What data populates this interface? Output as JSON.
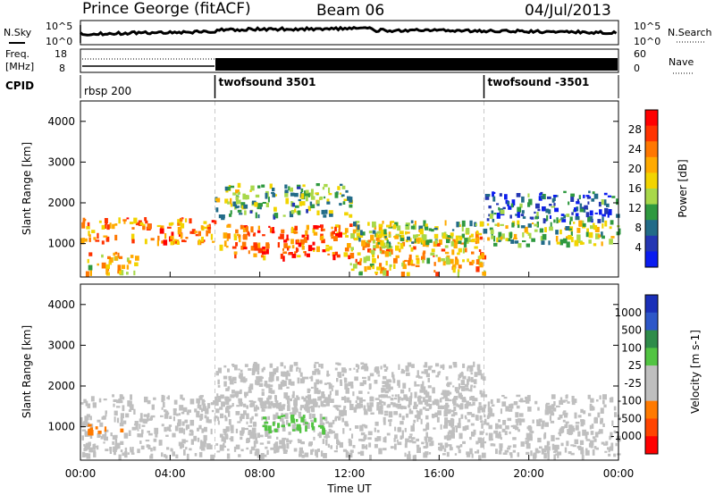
{
  "header": {
    "station": "Prince George (fitACF)",
    "beam": "Beam 06",
    "date": "04/Jul/2013"
  },
  "noise_panel": {
    "left_label": "N.Sky",
    "right_label": "N.Search",
    "left_ticks": [
      "10^5",
      "10^0"
    ],
    "right_ticks": [
      "10^5",
      "10^0"
    ]
  },
  "freq_panel": {
    "left_label_line1": "Freq.",
    "left_label_line2": "[MHz]",
    "right_label": "Nave",
    "left_ticks": [
      "18",
      "8"
    ],
    "right_ticks": [
      "60",
      "0"
    ]
  },
  "cpid_panel": {
    "label": "CPID",
    "segments": [
      {
        "name": "rbsp 200",
        "start_hour": 0,
        "bold": false
      },
      {
        "name": "twofsound 3501",
        "start_hour": 6,
        "bold": true
      },
      {
        "name": "twofsound -3501",
        "start_hour": 18,
        "bold": true
      }
    ]
  },
  "time_axis": {
    "label": "Time UT",
    "ticks": [
      "00:00",
      "04:00",
      "08:00",
      "12:00",
      "16:00",
      "20:00",
      "00:00"
    ]
  },
  "power_panel": {
    "ylabel": "Slant Range [km]",
    "yticks": [
      "4000",
      "3000",
      "2000",
      "1000"
    ],
    "colorbar_label": "Power [dB]",
    "colorbar_ticks": [
      "28",
      "24",
      "20",
      "16",
      "12",
      "8",
      "4"
    ],
    "colors": [
      "#ff0000",
      "#ff3300",
      "#ff7700",
      "#ffaa00",
      "#f2d400",
      "#a8d84a",
      "#2f9940",
      "#226b88",
      "#2436b3",
      "#0a1cf0"
    ]
  },
  "velocity_panel": {
    "ylabel": "Slant Range [km]",
    "yticks": [
      "4000",
      "3000",
      "2000",
      "1000"
    ],
    "colorbar_label": "Velocity [m s-1]",
    "colorbar_ticks": [
      "1000",
      "500",
      "100",
      "25",
      "-25",
      "-100",
      "-500",
      "-1000"
    ],
    "colors": [
      "#1a2fb8",
      "#2d57c8",
      "#2f8c4a",
      "#52c442",
      "#bfbfbf",
      "#bfbfbf",
      "#ff7a00",
      "#ff4400",
      "#ff0000"
    ]
  },
  "chart_data": [
    {
      "type": "heatmap",
      "title": "Power",
      "xlabel": "Time UT",
      "ylabel": "Slant Range [km]",
      "xlim": [
        0,
        24
      ],
      "ylim": [
        180,
        4500
      ],
      "colorbar": {
        "label": "Power [dB]",
        "range": [
          0,
          32
        ]
      },
      "bands": [
        {
          "t0": 0.0,
          "t1": 6.0,
          "r0": 1050,
          "r1": 1650,
          "power": 24
        },
        {
          "t0": 0.2,
          "t1": 2.5,
          "r0": 300,
          "r1": 800,
          "power": 20
        },
        {
          "t0": 6.0,
          "t1": 12.0,
          "r0": 700,
          "r1": 1500,
          "power": 26
        },
        {
          "t0": 6.0,
          "t1": 12.0,
          "r0": 1700,
          "r1": 2500,
          "power": 12
        },
        {
          "t0": 12.0,
          "t1": 18.0,
          "r0": 300,
          "r1": 1300,
          "power": 20
        },
        {
          "t0": 12.0,
          "t1": 24.0,
          "r0": 1000,
          "r1": 1600,
          "power": 14
        },
        {
          "t0": 18.0,
          "t1": 24.0,
          "r0": 1600,
          "r1": 2300,
          "power": 6
        }
      ]
    },
    {
      "type": "heatmap",
      "title": "Velocity",
      "xlabel": "Time UT",
      "ylabel": "Slant Range [km]",
      "xlim": [
        0,
        24
      ],
      "ylim": [
        180,
        4500
      ],
      "colorbar": {
        "label": "Velocity [m s-1]",
        "range": [
          -1000,
          1000
        ]
      },
      "bands": [
        {
          "t0": 0.0,
          "t1": 24.0,
          "r0": 300,
          "r1": 1800,
          "velocity": 0
        },
        {
          "t0": 6.0,
          "t1": 18.0,
          "r0": 1500,
          "r1": 2600,
          "velocity": 0
        },
        {
          "t0": 8.0,
          "t1": 11.0,
          "r0": 900,
          "r1": 1300,
          "velocity": 100
        },
        {
          "t0": 0.3,
          "t1": 1.8,
          "r0": 900,
          "r1": 1100,
          "velocity": -100
        }
      ]
    }
  ]
}
